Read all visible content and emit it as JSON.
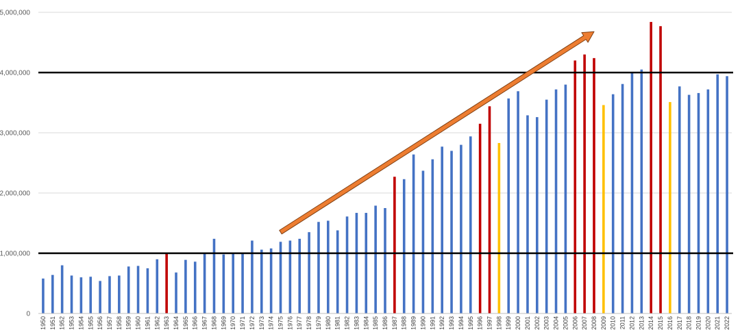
{
  "chart_data": {
    "type": "bar",
    "title": "",
    "xlabel": "",
    "ylabel": "",
    "ylim": [
      0,
      5000000
    ],
    "yticks": [
      "0",
      "1,000,000",
      "2,000,000",
      "3,000,000",
      "4,000,000",
      "5,000,000"
    ],
    "grid": true,
    "legend": "none",
    "colors": {
      "default": "#4472c4",
      "red": "#c00000",
      "yellow": "#ffc000",
      "arrow": "#ed7d31",
      "arrow_edge": "#7f3f12",
      "reference_line": "#000000",
      "grid": "#d9d9d9"
    },
    "reference_lines": [
      1000000,
      4000000
    ],
    "arrow": {
      "from": {
        "x": "1975",
        "y": 1350000
      },
      "to": {
        "x": "2008",
        "y": 4680000
      }
    },
    "categories": [
      "1950",
      "1951",
      "1952",
      "1953",
      "1954",
      "1955",
      "1956",
      "1957",
      "1958",
      "1959",
      "1960",
      "1961",
      "1962",
      "1963",
      "1964",
      "1965",
      "1966",
      "1967",
      "1968",
      "1969",
      "1970",
      "1971",
      "1972",
      "1973",
      "1974",
      "1975",
      "1976",
      "1977",
      "1978",
      "1979",
      "1980",
      "1981",
      "1982",
      "1983",
      "1984",
      "1985",
      "1986",
      "1987",
      "1988",
      "1989",
      "1990",
      "1991",
      "1992",
      "1993",
      "1994",
      "1995",
      "1996",
      "1997",
      "1998",
      "1999",
      "2000",
      "2001",
      "2002",
      "2003",
      "2004",
      "2005",
      "2006",
      "2007",
      "2008",
      "2009",
      "2010",
      "2011",
      "2012",
      "2013",
      "2014",
      "2015",
      "2016",
      "2017",
      "2018",
      "2019",
      "2020",
      "2021",
      "2022"
    ],
    "values": [
      580000,
      640000,
      800000,
      630000,
      600000,
      610000,
      540000,
      620000,
      630000,
      780000,
      790000,
      750000,
      900000,
      1000000,
      680000,
      890000,
      860000,
      990000,
      1240000,
      980000,
      990000,
      1000000,
      1210000,
      1060000,
      1080000,
      1190000,
      1210000,
      1240000,
      1350000,
      1520000,
      1540000,
      1380000,
      1610000,
      1670000,
      1670000,
      1790000,
      1750000,
      2270000,
      2230000,
      2640000,
      2370000,
      2560000,
      2770000,
      2700000,
      2800000,
      2940000,
      3150000,
      3440000,
      2830000,
      3570000,
      3690000,
      3290000,
      3260000,
      3550000,
      3720000,
      3800000,
      4200000,
      4300000,
      4240000,
      3460000,
      3640000,
      3810000,
      4010000,
      4050000,
      4840000,
      4770000,
      3510000,
      3770000,
      3630000,
      3660000,
      3720000,
      3970000,
      3940000
    ],
    "bar_colors": [
      "default",
      "default",
      "default",
      "default",
      "default",
      "default",
      "default",
      "default",
      "default",
      "default",
      "default",
      "default",
      "default",
      "red",
      "default",
      "default",
      "default",
      "default",
      "default",
      "default",
      "default",
      "default",
      "default",
      "default",
      "default",
      "default",
      "default",
      "default",
      "default",
      "default",
      "default",
      "default",
      "default",
      "default",
      "default",
      "default",
      "default",
      "red",
      "default",
      "default",
      "default",
      "default",
      "default",
      "default",
      "default",
      "default",
      "red",
      "red",
      "yellow",
      "default",
      "default",
      "default",
      "default",
      "default",
      "default",
      "default",
      "red",
      "red",
      "red",
      "yellow",
      "default",
      "default",
      "default",
      "default",
      "red",
      "red",
      "yellow",
      "default",
      "default",
      "default",
      "default",
      "default",
      "default"
    ]
  }
}
